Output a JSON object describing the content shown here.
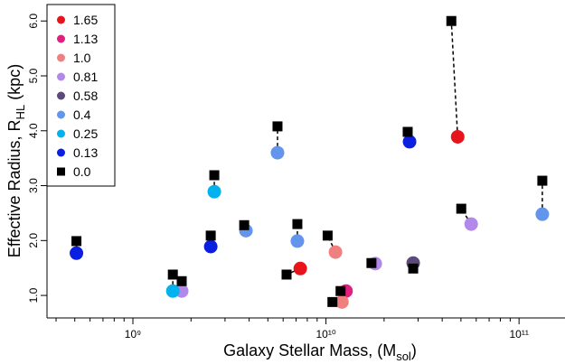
{
  "chart_data": {
    "type": "scatter",
    "x_label": {
      "main": "Galaxy Stellar Mass, (M",
      "sub": "sol",
      "end": ")"
    },
    "y_label": {
      "main": "Effective Radius, R",
      "sub": "HL",
      "end": " (kpc)"
    },
    "log_x": true,
    "legend": "top-left",
    "connect_pairs": true,
    "xlim": [
      359000000,
      173000000000
    ],
    "ylim": [
      0.59,
      6.3
    ],
    "xticks": [
      {
        "value": 1000000000,
        "label": "10⁹"
      },
      {
        "value": 10000000000,
        "label": "10¹⁰"
      },
      {
        "value": 100000000000,
        "label": "10¹¹"
      }
    ],
    "xminorticks": [
      400000000,
      500000000,
      600000000,
      700000000,
      800000000,
      900000000,
      2000000000,
      3000000000,
      4000000000,
      5000000000,
      6000000000,
      7000000000,
      8000000000,
      9000000000,
      20000000000,
      30000000000,
      40000000000,
      50000000000,
      60000000000,
      70000000000,
      80000000000,
      90000000000
    ],
    "yticks": [
      {
        "value": 1,
        "label": "1.0"
      },
      {
        "value": 2,
        "label": "2.0"
      },
      {
        "value": 3,
        "label": "3.0"
      },
      {
        "value": 4,
        "label": "4.0"
      },
      {
        "value": 5,
        "label": "5.0"
      },
      {
        "value": 6,
        "label": "6.0"
      }
    ],
    "series": [
      {
        "name": "1.65",
        "color": "#e8141c",
        "marker": "circle",
        "x": [
          7360000000,
          48100000000
        ],
        "values": [
          1.49,
          3.89
        ]
      },
      {
        "name": "1.13",
        "color": "#e0207f",
        "marker": "circle",
        "x": [
          12700000000
        ],
        "values": [
          1.08
        ]
      },
      {
        "name": "1.0",
        "color": "#f08080",
        "marker": "circle",
        "x": [
          11200000000,
          12100000000
        ],
        "values": [
          1.79,
          0.88
        ]
      },
      {
        "name": "0.81",
        "color": "#b388eb",
        "marker": "circle",
        "x": [
          1790000000,
          18000000000,
          56500000000
        ],
        "values": [
          1.08,
          1.58,
          2.3
        ]
      },
      {
        "name": "0.58",
        "color": "#5b4a7a",
        "marker": "circle",
        "x": [
          28300000000
        ],
        "values": [
          1.59
        ]
      },
      {
        "name": "0.4",
        "color": "#6495ed",
        "marker": "circle",
        "x": [
          3850000000,
          5610000000,
          7110000000,
          132000000000
        ],
        "values": [
          2.18,
          3.6,
          1.99,
          2.48
        ]
      },
      {
        "name": "0.25",
        "color": "#00b2ee",
        "marker": "circle",
        "x": [
          1610000000,
          2640000000
        ],
        "values": [
          1.08,
          2.89
        ]
      },
      {
        "name": "0.13",
        "color": "#0a1fe0",
        "marker": "circle",
        "x": [
          510000000,
          2530000000,
          27100000000
        ],
        "values": [
          1.77,
          1.89,
          3.8
        ]
      },
      {
        "name": "0.0",
        "color": "#000000",
        "marker": "square",
        "x": [
          6250000000,
          44600000000,
          11900000000,
          10200000000,
          10800000000,
          1790000000,
          17200000000,
          50200000000,
          28300000000,
          3770000000,
          5610000000,
          7110000000,
          132000000000,
          1610000000,
          2640000000,
          510000000,
          2530000000,
          26500000000
        ],
        "values": [
          1.38,
          6.0,
          1.08,
          2.09,
          0.88,
          1.26,
          1.59,
          2.58,
          1.49,
          2.28,
          4.08,
          2.3,
          3.09,
          1.38,
          3.19,
          1.99,
          2.09,
          3.98
        ]
      }
    ]
  }
}
